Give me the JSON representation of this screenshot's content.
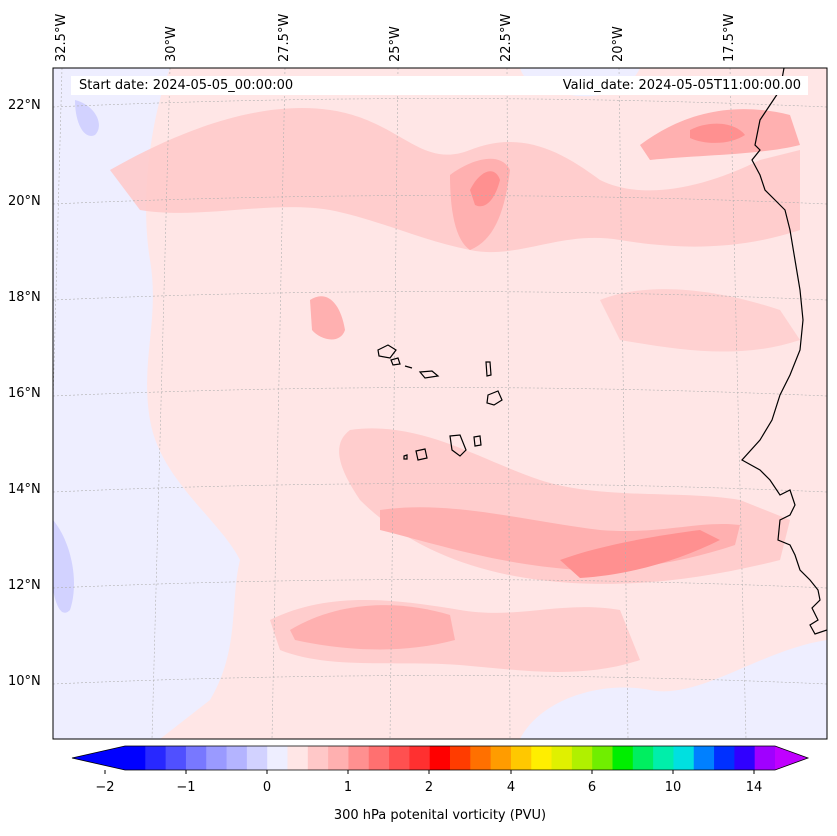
{
  "header": {
    "start_date": "Start date: 2024-05-05_00:00:00",
    "valid_date": "Valid_date: 2024-05-05T11:00:00.00"
  },
  "map": {
    "longitude_labels": [
      "32.5°W",
      "30°W",
      "27.5°W",
      "25°W",
      "22.5°W",
      "20°W",
      "17.5°W"
    ],
    "latitude_labels": [
      "22°N",
      "20°N",
      "18°N",
      "16°N",
      "14°N",
      "12°N",
      "10°N"
    ],
    "gridlines": true
  },
  "colorbar": {
    "title": "300 hPa potenital vorticity (PVU)",
    "tick_labels": [
      "−2",
      "−1",
      "0",
      "1",
      "2",
      "4",
      "6",
      "10",
      "14"
    ],
    "colors": [
      "#0000ff",
      "#2828ff",
      "#5050ff",
      "#7878ff",
      "#9a9aff",
      "#b4b4ff",
      "#d2d2ff",
      "#eeeeff",
      "#ffe6e6",
      "#ffc8c8",
      "#ffb0b0",
      "#ff9090",
      "#ff7070",
      "#ff5050",
      "#ff3030",
      "#ff0000",
      "#ff3c00",
      "#ff7000",
      "#ff9c00",
      "#ffc800",
      "#ffee00",
      "#e0f000",
      "#b0f000",
      "#70ee00",
      "#00ee00",
      "#00ee60",
      "#00eeaa",
      "#00e0e0",
      "#0080ff",
      "#0030ff",
      "#3000ff",
      "#a000ff"
    ],
    "under_color": "#0000ff",
    "over_color": "#c000ff"
  }
}
